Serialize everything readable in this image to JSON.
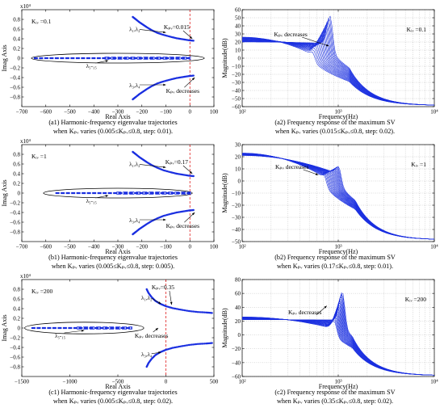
{
  "captions": {
    "a1": {
      "line1": "(a1) Harmonic-frequency eigenvalue trajectories",
      "line2": "when Kₚᵥ varies (0.005≤Kₚᵥ≤0.8, step: 0.01)."
    },
    "a2": {
      "line1": "(a2) Frequency response of the maximum SV",
      "line2": "when Kₚᵥ varies (0.015≤Kₚᵥ≤0.8, step: 0.02)."
    },
    "b1": {
      "line1": "(b1) Harmonic-frequency eigenvalue trajectories",
      "line2": "when Kₚᵥ varies (0.005≤Kₚᵥ≤0.8, step: 0.005)."
    },
    "b2": {
      "line1": "(b2) Frequency response of the maximum SV",
      "line2": "when Kₚᵥ varies (0.17≤Kₚᵥ≤0.8, step: 0.01)."
    },
    "c1": {
      "line1": "(c1) Harmonic-frequency eigenvalue trajectories",
      "line2": "when Kₚᵥ varies (0.005≤Kₚᵥ≤0.8, step: 0.02)."
    },
    "c2": {
      "line1": "(c2) Frequency response of the maximum SV",
      "line2": "when Kₚᵥ varies (0.35≤Kₚᵥ≤0.8, step: 0.02)."
    }
  },
  "colors": {
    "trace": "#1a2fe0",
    "marker": "#1a2fe0",
    "dashed": "#e02020",
    "ellipse": "#000000"
  },
  "chart_data": [
    {
      "id": "a1",
      "type": "scatter",
      "xlabel": "Real Axis",
      "ylabel": "Imag Axis",
      "exponent": "x10⁴",
      "xlim": [
        -700,
        100
      ],
      "ylim": [
        -1,
        1
      ],
      "xticks": [
        -700,
        -600,
        -500,
        -400,
        -300,
        -200,
        -100,
        0,
        100
      ],
      "yticks": [
        -0.8,
        -0.6,
        -0.4,
        -0.2,
        0,
        0.2,
        0.4,
        0.6,
        0.8
      ],
      "xticklabels": [
        "−700",
        "−600",
        "−500",
        "−400",
        "−300",
        "−200",
        "−100",
        "0",
        "100"
      ],
      "yticklabels": [
        "−0.8",
        "−0.6",
        "−0.4",
        "−0.2",
        "0",
        "0.2",
        "0.4",
        "0.6",
        "0.8"
      ],
      "kiv": "Kᵢᵥ =0.1",
      "kpv_label": "Kₚᵥ=0.015",
      "decreases_label": "Kₚᵥ decreases",
      "lambda12": "λ₁,λ₂",
      "lambda34": "λ₃,λ₄",
      "lambda515": "λ₅-₁₅",
      "upper": [
        [
          -238,
          0.85
        ],
        [
          -225,
          0.8
        ],
        [
          -210,
          0.74
        ],
        [
          -195,
          0.69
        ],
        [
          -180,
          0.64
        ],
        [
          -160,
          0.58
        ],
        [
          -135,
          0.52
        ],
        [
          -110,
          0.48
        ],
        [
          -80,
          0.44
        ],
        [
          -55,
          0.41
        ],
        [
          -30,
          0.39
        ],
        [
          -5,
          0.37
        ],
        [
          15,
          0.36
        ]
      ],
      "lower": [
        [
          -238,
          -0.85
        ],
        [
          -225,
          -0.8
        ],
        [
          -210,
          -0.74
        ],
        [
          -195,
          -0.69
        ],
        [
          -180,
          -0.64
        ],
        [
          -160,
          -0.58
        ],
        [
          -135,
          -0.52
        ],
        [
          -110,
          -0.48
        ],
        [
          -80,
          -0.44
        ],
        [
          -55,
          -0.41
        ],
        [
          -30,
          -0.39
        ],
        [
          -5,
          -0.37
        ],
        [
          15,
          -0.36
        ]
      ],
      "cluster_x": [
        -650,
        5
      ],
      "ellipse": {
        "cx": -300,
        "rx": 360,
        "ry": 0.1
      },
      "dash_x": 0,
      "ann": {
        "kpv": [
          -55,
          0.6
        ],
        "l12": [
          -230,
          0.56
        ],
        "l34": [
          -230,
          -0.6
        ],
        "l515": [
          -410,
          -0.2
        ],
        "dec": [
          -30,
          -0.72
        ],
        "ekpv": [
          10,
          0.4
        ],
        "el12": [
          -100,
          0.53
        ],
        "el34": [
          -100,
          -0.55
        ],
        "el515": [
          -340,
          -0.05
        ],
        "edec": [
          20,
          -0.4
        ]
      }
    },
    {
      "id": "b1",
      "type": "scatter",
      "xlabel": "Real Axis",
      "ylabel": "Imag Axis",
      "exponent": "x10⁴",
      "xlim": [
        -700,
        100
      ],
      "ylim": [
        -1,
        1
      ],
      "xticks": [
        -700,
        -600,
        -500,
        -400,
        -300,
        -200,
        -100,
        0,
        100
      ],
      "yticks": [
        -0.8,
        -0.6,
        -0.4,
        -0.2,
        0,
        0.2,
        0.4,
        0.6,
        0.8
      ],
      "xticklabels": [
        "−700",
        "−600",
        "−500",
        "−400",
        "−300",
        "−200",
        "−100",
        "0",
        "100"
      ],
      "yticklabels": [
        "−0.8",
        "−0.6",
        "−0.4",
        "−0.2",
        "0",
        "0.2",
        "0.4",
        "0.6",
        "0.8"
      ],
      "kiv": "Kᵢᵥ =1",
      "kpv_label": "Kₚᵥ=0.17",
      "decreases_label": "Kₚᵥ decreases",
      "lambda12": "λ₁,λ₂",
      "lambda34": "λ₃,λ₄",
      "lambda515": "λ₅-₁₅",
      "upper": [
        [
          -238,
          0.85
        ],
        [
          -225,
          0.8
        ],
        [
          -210,
          0.74
        ],
        [
          -195,
          0.69
        ],
        [
          -180,
          0.64
        ],
        [
          -160,
          0.58
        ],
        [
          -135,
          0.52
        ],
        [
          -110,
          0.47
        ],
        [
          -80,
          0.43
        ],
        [
          -55,
          0.4
        ],
        [
          -30,
          0.38
        ],
        [
          -5,
          0.36
        ],
        [
          15,
          0.35
        ]
      ],
      "lower": [
        [
          -238,
          -0.85
        ],
        [
          -225,
          -0.8
        ],
        [
          -210,
          -0.74
        ],
        [
          -195,
          -0.69
        ],
        [
          -180,
          -0.64
        ],
        [
          -160,
          -0.58
        ],
        [
          -135,
          -0.52
        ],
        [
          -110,
          -0.47
        ],
        [
          -80,
          -0.43
        ],
        [
          -55,
          -0.4
        ],
        [
          -30,
          -0.38
        ],
        [
          -5,
          -0.36
        ],
        [
          15,
          -0.35
        ]
      ],
      "cluster_x": [
        -560,
        5
      ],
      "ellipse": {
        "cx": -300,
        "rx": 310,
        "ry": 0.1
      },
      "dash_x": 0,
      "ann": {
        "kpv": [
          -55,
          0.6
        ],
        "l12": [
          -230,
          0.56
        ],
        "l34": [
          -230,
          -0.6
        ],
        "l515": [
          -410,
          -0.2
        ],
        "dec": [
          -30,
          -0.72
        ],
        "ekpv": [
          10,
          0.4
        ],
        "el12": [
          -100,
          0.53
        ],
        "el34": [
          -100,
          -0.55
        ],
        "el515": [
          -340,
          -0.05
        ],
        "edec": [
          20,
          -0.4
        ]
      }
    },
    {
      "id": "c1",
      "type": "scatter",
      "xlabel": "Real Axis",
      "ylabel": "Imag Axis",
      "exponent": "x10⁴",
      "xlim": [
        -1500,
        500
      ],
      "ylim": [
        -1,
        1
      ],
      "xticks": [
        -1500,
        -1000,
        -500,
        0,
        500
      ],
      "yticks": [
        -0.8,
        -0.6,
        -0.4,
        -0.2,
        0,
        0.2,
        0.4,
        0.6,
        0.8
      ],
      "xticklabels": [
        "−1500",
        "−1000",
        "−500",
        "0",
        "500"
      ],
      "yticklabels": [
        "−0.8",
        "−0.6",
        "−0.4",
        "−0.2",
        "0",
        "0.2",
        "0.4",
        "0.6",
        "0.8"
      ],
      "kiv": "Kᵢᵥ =200",
      "kpv_label": "Kₚᵥ=0.35",
      "decreases_label": "Kₚᵥ decreases",
      "lambda12": "λ₁,λ₂",
      "lambda34": "λ₃,λ₄",
      "lambda515": "λ₅-₁₅",
      "upper": [
        [
          -200,
          0.8
        ],
        [
          -180,
          0.72
        ],
        [
          -150,
          0.64
        ],
        [
          -110,
          0.56
        ],
        [
          -60,
          0.5
        ],
        [
          0,
          0.45
        ],
        [
          70,
          0.41
        ],
        [
          150,
          0.38
        ],
        [
          240,
          0.35
        ],
        [
          330,
          0.33
        ],
        [
          420,
          0.32
        ],
        [
          480,
          0.31
        ]
      ],
      "lower": [
        [
          -200,
          -0.8
        ],
        [
          -180,
          -0.72
        ],
        [
          -150,
          -0.64
        ],
        [
          -110,
          -0.56
        ],
        [
          -60,
          -0.5
        ],
        [
          0,
          -0.45
        ],
        [
          70,
          -0.41
        ],
        [
          150,
          -0.38
        ],
        [
          240,
          -0.35
        ],
        [
          330,
          -0.33
        ],
        [
          420,
          -0.32
        ],
        [
          480,
          -0.31
        ]
      ],
      "cluster_x": [
        -1400,
        -350
      ],
      "ellipse": {
        "cx": -850,
        "rx": 620,
        "ry": 0.12
      },
      "dash_x": 0,
      "ann": {
        "kpv": [
          -30,
          0.8
        ],
        "l12": [
          -200,
          0.58
        ],
        "l34": [
          -200,
          -0.58
        ],
        "l515": [
          -1100,
          -0.2
        ],
        "dec": [
          -150,
          -0.2
        ],
        "ekpv": [
          60,
          0.48
        ],
        "el12": [
          -50,
          0.5
        ],
        "el34": [
          -50,
          -0.5
        ],
        "el515": [
          -850,
          -0.05
        ],
        "edec": [
          -80,
          0.0
        ]
      }
    },
    {
      "id": "a2",
      "type": "line",
      "xlabel": "Frequency(Hz)",
      "ylabel": "Magnitude(dB)",
      "xlim": [
        100,
        10000
      ],
      "ylim": [
        -60,
        60
      ],
      "xscale": "log",
      "yticks": [
        -60,
        -50,
        -40,
        -30,
        -20,
        -10,
        0,
        10,
        20,
        30,
        40,
        50,
        60
      ],
      "yticklabels": [
        "−60",
        "−50",
        "−40",
        "−30",
        "−20",
        "−10",
        "0",
        "10",
        "20",
        "30",
        "40",
        "50",
        "60"
      ],
      "xticks": [
        100,
        1000,
        10000
      ],
      "xticklabels": [
        "10²",
        "10³",
        "10⁴"
      ],
      "kiv": "Kᵢᵥ =0.1",
      "decreases_label": "Kₚᵥ decreases",
      "n_curves": 20,
      "low_range": [
        20,
        26
      ],
      "peak_f": [
        530,
        820
      ],
      "peak_db": [
        8,
        52
      ],
      "high_db": -58,
      "asym_f": 1300,
      "ann": {
        "dec": [
          320,
          27
        ],
        "tip": [
          800,
          15
        ]
      }
    },
    {
      "id": "b2",
      "type": "line",
      "xlabel": "Frequency(Hz)",
      "ylabel": "Magnitude(dB)",
      "xlim": [
        100,
        10000
      ],
      "ylim": [
        -50,
        30
      ],
      "xscale": "log",
      "yticks": [
        -50,
        -40,
        -30,
        -20,
        -10,
        0,
        10,
        20,
        30
      ],
      "yticklabels": [
        "−50",
        "−40",
        "−30",
        "−20",
        "−10",
        "0",
        "10",
        "20",
        "30"
      ],
      "xticks": [
        100,
        1000,
        10000
      ],
      "xticklabels": [
        "10²",
        "10³",
        "10⁴"
      ],
      "kiv": "Kᵢᵥ =1",
      "decreases_label": "Kₚᵥ decreases",
      "n_curves": 20,
      "low_range": [
        21,
        23
      ],
      "peak_f": [
        700,
        1000
      ],
      "peak_db": [
        5,
        12
      ],
      "high_db": -48,
      "asym_f": 1500,
      "ann": {
        "dec": [
          330,
          10
        ],
        "tip": [
          620,
          5
        ]
      }
    },
    {
      "id": "c2",
      "type": "line",
      "xlabel": "Frequency(Hz)",
      "ylabel": "Magnitude(dB)",
      "xlim": [
        100,
        10000
      ],
      "ylim": [
        -60,
        80
      ],
      "xscale": "log",
      "yticks": [
        -60,
        -40,
        -20,
        0,
        20,
        40,
        60,
        80
      ],
      "yticklabels": [
        "−60",
        "−40",
        "−20",
        "0",
        "20",
        "40",
        "60",
        "80"
      ],
      "xticks": [
        100,
        1000,
        10000
      ],
      "xticklabels": [
        "10²",
        "10³",
        "10⁴"
      ],
      "kiv": "Kᵢᵥ =200",
      "decreases_label": "Kₚᵥ decreases",
      "n_curves": 20,
      "low_range": [
        22,
        26
      ],
      "peak_f": [
        900,
        1100
      ],
      "peak_db": [
        20,
        62
      ],
      "high_db": -58,
      "asym_f": 1400,
      "ann": {
        "dec": [
          450,
          30
        ],
        "tip": [
          760,
          42
        ]
      }
    }
  ]
}
